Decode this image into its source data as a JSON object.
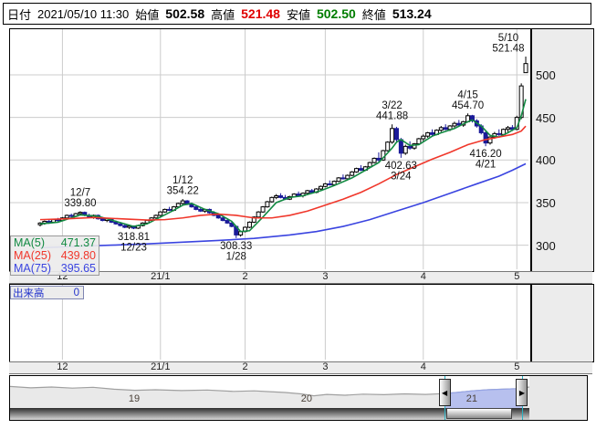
{
  "header": {
    "date_label": "日付",
    "date_value": "2021/05/10 11:30",
    "open_label": "始値",
    "open_value": "502.58",
    "high_label": "高値",
    "high_value": "521.48",
    "low_label": "安値",
    "low_value": "502.50",
    "close_label": "終値",
    "close_value": "513.24"
  },
  "colors": {
    "up": "#ffffff",
    "down": "#1a1a99",
    "ma5": "#128a42",
    "ma25": "#f0372b",
    "ma75": "#3a44e0",
    "grid": "#cccccc",
    "annotation": "#111111",
    "selection_fill": "#b7c0ee",
    "selection_line": "#96a4e4",
    "nav_fill": "#e9e9e9",
    "nav_line": "#a0a0a0",
    "cyan": "#29b3c4"
  },
  "nav_icons": {
    "left_arrow": "◀",
    "right_arrow": "▶"
  },
  "chart_data": {
    "type": "candlestick",
    "title": "",
    "y_ticks": [
      500,
      450,
      400,
      350,
      300
    ],
    "y_range": [
      269.6,
      553.6
    ],
    "x_ticks": [
      {
        "label": "12",
        "index": 5
      },
      {
        "label": "21/1",
        "index": 27
      },
      {
        "label": "2",
        "index": 46
      },
      {
        "label": "3",
        "index": 64
      },
      {
        "label": "4",
        "index": 86
      },
      {
        "label": "5",
        "index": 107
      }
    ],
    "candles": [
      [
        324,
        327,
        322,
        326
      ],
      [
        326,
        329,
        324,
        328
      ],
      [
        328,
        330,
        325,
        327
      ],
      [
        327,
        331,
        326,
        330
      ],
      [
        330,
        332,
        327,
        329
      ],
      [
        329,
        333,
        328,
        332
      ],
      [
        332,
        336,
        331,
        335
      ],
      [
        335,
        337,
        332,
        334
      ],
      [
        334,
        338,
        333,
        337
      ],
      [
        337,
        339.8,
        335,
        338.5
      ],
      [
        338.5,
        339.5,
        334,
        335
      ],
      [
        335,
        337,
        332,
        333
      ],
      [
        333,
        336,
        331,
        335
      ],
      [
        335,
        336,
        330,
        331
      ],
      [
        331,
        333,
        328,
        329
      ],
      [
        329,
        332,
        327,
        331
      ],
      [
        331,
        332,
        326,
        327
      ],
      [
        327,
        329,
        324,
        325
      ],
      [
        325,
        327,
        322,
        323
      ],
      [
        323,
        325,
        320,
        321
      ],
      [
        321,
        323.5,
        319,
        322.5
      ],
      [
        322.5,
        323,
        318.81,
        320
      ],
      [
        320,
        324,
        319,
        323
      ],
      [
        323,
        327,
        322,
        326
      ],
      [
        326,
        330,
        325,
        329
      ],
      [
        329,
        333,
        328,
        332
      ],
      [
        332,
        336,
        331,
        335
      ],
      [
        335,
        340,
        334,
        339
      ],
      [
        339,
        343,
        338,
        342
      ],
      [
        342,
        345,
        340,
        341
      ],
      [
        341,
        346,
        340,
        345
      ],
      [
        345,
        350,
        344,
        349
      ],
      [
        349,
        354.22,
        347,
        352
      ],
      [
        352,
        353,
        347,
        348
      ],
      [
        348,
        350,
        344,
        345
      ],
      [
        345,
        347,
        341,
        342
      ],
      [
        342,
        344,
        339,
        340
      ],
      [
        340,
        343,
        338,
        342
      ],
      [
        342,
        343,
        337,
        338
      ],
      [
        338,
        340,
        334,
        335
      ],
      [
        335,
        337,
        331,
        332
      ],
      [
        332,
        334,
        328,
        329
      ],
      [
        329,
        331,
        325,
        326
      ],
      [
        326,
        328,
        321,
        322
      ],
      [
        322,
        323,
        308.33,
        312
      ],
      [
        312,
        317,
        310,
        316
      ],
      [
        316,
        322,
        315,
        321
      ],
      [
        321,
        328,
        320,
        327
      ],
      [
        327,
        334,
        326,
        333
      ],
      [
        333,
        340,
        332,
        339
      ],
      [
        339,
        346,
        338,
        345
      ],
      [
        345,
        352,
        344,
        351
      ],
      [
        351,
        357,
        350,
        356
      ],
      [
        356,
        360,
        354,
        358
      ],
      [
        358,
        361,
        355,
        356
      ],
      [
        356,
        359,
        353,
        354
      ],
      [
        354,
        358,
        353,
        357
      ],
      [
        357,
        361,
        356,
        360
      ],
      [
        360,
        363,
        357,
        358
      ],
      [
        358,
        362,
        356,
        361
      ],
      [
        361,
        365,
        360,
        364
      ],
      [
        364,
        366,
        361,
        362
      ],
      [
        362,
        367,
        361,
        366
      ],
      [
        366,
        370,
        365,
        369
      ],
      [
        369,
        373,
        368,
        372
      ],
      [
        372,
        376,
        370,
        371
      ],
      [
        371,
        376,
        370,
        375
      ],
      [
        375,
        380,
        374,
        379
      ],
      [
        379,
        383,
        377,
        378
      ],
      [
        378,
        383,
        377,
        382
      ],
      [
        382,
        387,
        381,
        386
      ],
      [
        386,
        391,
        385,
        390
      ],
      [
        390,
        394,
        387,
        388
      ],
      [
        388,
        393,
        387,
        392
      ],
      [
        392,
        398,
        391,
        397
      ],
      [
        397,
        403,
        396,
        402
      ],
      [
        402,
        409,
        398,
        400
      ],
      [
        400,
        412,
        399,
        411
      ],
      [
        411,
        422,
        410,
        421
      ],
      [
        421,
        441.88,
        419,
        437
      ],
      [
        437,
        439,
        421,
        424
      ],
      [
        424,
        426,
        402.63,
        408
      ],
      [
        408,
        418,
        406,
        416
      ],
      [
        416,
        422,
        412,
        414
      ],
      [
        414,
        420,
        412,
        419
      ],
      [
        419,
        426,
        418,
        425
      ],
      [
        425,
        430,
        422,
        428
      ],
      [
        428,
        433,
        426,
        432
      ],
      [
        432,
        436,
        428,
        430
      ],
      [
        430,
        436,
        429,
        435
      ],
      [
        435,
        440,
        433,
        438
      ],
      [
        438,
        442,
        435,
        436
      ],
      [
        436,
        441,
        434,
        440
      ],
      [
        440,
        445,
        438,
        443
      ],
      [
        443,
        447,
        440,
        441
      ],
      [
        441,
        446,
        439,
        445
      ],
      [
        445,
        454.7,
        444,
        452
      ],
      [
        452,
        453,
        444,
        446
      ],
      [
        446,
        448,
        438,
        440
      ],
      [
        440,
        442,
        430,
        432
      ],
      [
        432,
        434,
        416.2,
        420
      ],
      [
        420,
        428,
        418,
        427
      ],
      [
        427,
        433,
        425,
        431
      ],
      [
        431,
        436,
        428,
        430
      ],
      [
        430,
        437,
        429,
        436
      ],
      [
        436,
        440,
        433,
        438
      ],
      [
        438,
        441,
        434,
        436
      ],
      [
        436,
        452,
        435,
        450
      ],
      [
        450,
        490,
        448,
        487
      ],
      [
        502.58,
        521.48,
        502.5,
        513.24
      ]
    ],
    "ma_series": [
      {
        "name": "MA(5)",
        "value_label": "471.37",
        "color": "#128a42",
        "points": [
          [
            0,
            325
          ],
          [
            4,
            327
          ],
          [
            9,
            335.5
          ],
          [
            13,
            334
          ],
          [
            17,
            328
          ],
          [
            21,
            322
          ],
          [
            24,
            325
          ],
          [
            27,
            333
          ],
          [
            30,
            341
          ],
          [
            32,
            347
          ],
          [
            34,
            349
          ],
          [
            37,
            342
          ],
          [
            40,
            337
          ],
          [
            43,
            328
          ],
          [
            45,
            316
          ],
          [
            47,
            317
          ],
          [
            50,
            333
          ],
          [
            53,
            350
          ],
          [
            56,
            356
          ],
          [
            59,
            358
          ],
          [
            63,
            364
          ],
          [
            66,
            370
          ],
          [
            70,
            379
          ],
          [
            73,
            388
          ],
          [
            76,
            397
          ],
          [
            79,
            414
          ],
          [
            80,
            421
          ],
          [
            81,
            424
          ],
          [
            83,
            417
          ],
          [
            85,
            418
          ],
          [
            88,
            428
          ],
          [
            90,
            432
          ],
          [
            93,
            437
          ],
          [
            96,
            445
          ],
          [
            97,
            447
          ],
          [
            99,
            440
          ],
          [
            101,
            429
          ],
          [
            103,
            427
          ],
          [
            105,
            432
          ],
          [
            107,
            438
          ],
          [
            108,
            452
          ],
          [
            109,
            471.37
          ]
        ]
      },
      {
        "name": "MA(25)",
        "value_label": "439.80",
        "color": "#f0372b",
        "points": [
          [
            0,
            330
          ],
          [
            6,
            331
          ],
          [
            12,
            332.5
          ],
          [
            18,
            331
          ],
          [
            24,
            329.5
          ],
          [
            28,
            330
          ],
          [
            32,
            332
          ],
          [
            36,
            335
          ],
          [
            40,
            336.5
          ],
          [
            44,
            335
          ],
          [
            48,
            332
          ],
          [
            52,
            332
          ],
          [
            56,
            335
          ],
          [
            60,
            340
          ],
          [
            64,
            347
          ],
          [
            68,
            354
          ],
          [
            72,
            362
          ],
          [
            76,
            372
          ],
          [
            80,
            383
          ],
          [
            84,
            392
          ],
          [
            88,
            401
          ],
          [
            92,
            409
          ],
          [
            96,
            418
          ],
          [
            100,
            424
          ],
          [
            103,
            427
          ],
          [
            106,
            430
          ],
          [
            108,
            434
          ],
          [
            109,
            439.8
          ]
        ]
      },
      {
        "name": "MA(75)",
        "value_label": "395.65",
        "color": "#3a44e0",
        "points": [
          [
            0,
            297
          ],
          [
            8,
            298.5
          ],
          [
            16,
            300
          ],
          [
            24,
            301.5
          ],
          [
            32,
            303.5
          ],
          [
            40,
            305.5
          ],
          [
            48,
            308
          ],
          [
            56,
            312
          ],
          [
            62,
            316
          ],
          [
            68,
            322
          ],
          [
            74,
            330
          ],
          [
            80,
            340
          ],
          [
            86,
            350
          ],
          [
            92,
            361
          ],
          [
            98,
            372
          ],
          [
            103,
            381
          ],
          [
            106,
            388
          ],
          [
            109,
            395.65
          ]
        ]
      }
    ],
    "annotations": [
      {
        "lines": [
          "12/7",
          "339.80"
        ],
        "index": 9,
        "value": 339.8,
        "pos": "above"
      },
      {
        "lines": [
          "318.81",
          "12/23"
        ],
        "index": 21,
        "value": 318.81,
        "pos": "below"
      },
      {
        "lines": [
          "1/12",
          "354.22"
        ],
        "index": 32,
        "value": 354.22,
        "pos": "above"
      },
      {
        "lines": [
          "308.33",
          "1/28"
        ],
        "index": 44,
        "value": 308.33,
        "pos": "below"
      },
      {
        "lines": [
          "3/22",
          "441.88"
        ],
        "index": 79,
        "value": 441.88,
        "pos": "above"
      },
      {
        "lines": [
          "402.63",
          "3/24"
        ],
        "index": 81,
        "value": 402.63,
        "pos": "below"
      },
      {
        "lines": [
          "4/15",
          "454.70"
        ],
        "index": 96,
        "value": 454.7,
        "pos": "above"
      },
      {
        "lines": [
          "416.20",
          "4/21"
        ],
        "index": 100,
        "value": 416.2,
        "pos": "below"
      },
      {
        "lines": [
          "5/10",
          "521.48"
        ],
        "index": 109,
        "value": 521.48,
        "pos": "above"
      }
    ],
    "volume": {
      "label": "出来高",
      "value": "0"
    },
    "navigator": {
      "labels": [
        {
          "label": "19",
          "x": 0.239
        },
        {
          "label": "20",
          "x": 0.571
        },
        {
          "label": "21",
          "x": 0.889
        }
      ],
      "line": [
        [
          0,
          0.28
        ],
        [
          0.04,
          0.33
        ],
        [
          0.08,
          0.3
        ],
        [
          0.12,
          0.34
        ],
        [
          0.16,
          0.31
        ],
        [
          0.2,
          0.38
        ],
        [
          0.24,
          0.42
        ],
        [
          0.28,
          0.4
        ],
        [
          0.33,
          0.43
        ],
        [
          0.38,
          0.41
        ],
        [
          0.43,
          0.46
        ],
        [
          0.47,
          0.44
        ],
        [
          0.5,
          0.47
        ],
        [
          0.53,
          0.5
        ],
        [
          0.56,
          0.55
        ],
        [
          0.585,
          0.62
        ],
        [
          0.61,
          0.57
        ],
        [
          0.645,
          0.6
        ],
        [
          0.68,
          0.56
        ],
        [
          0.72,
          0.58
        ],
        [
          0.76,
          0.55
        ],
        [
          0.8,
          0.57
        ],
        [
          0.836,
          0.54
        ],
        [
          0.86,
          0.5
        ],
        [
          0.89,
          0.44
        ],
        [
          0.92,
          0.4
        ],
        [
          0.95,
          0.38
        ],
        [
          0.975,
          0.36
        ],
        [
          1,
          0.3
        ]
      ],
      "sel_start": 0.8375,
      "sel_end": 0.9868
    }
  }
}
